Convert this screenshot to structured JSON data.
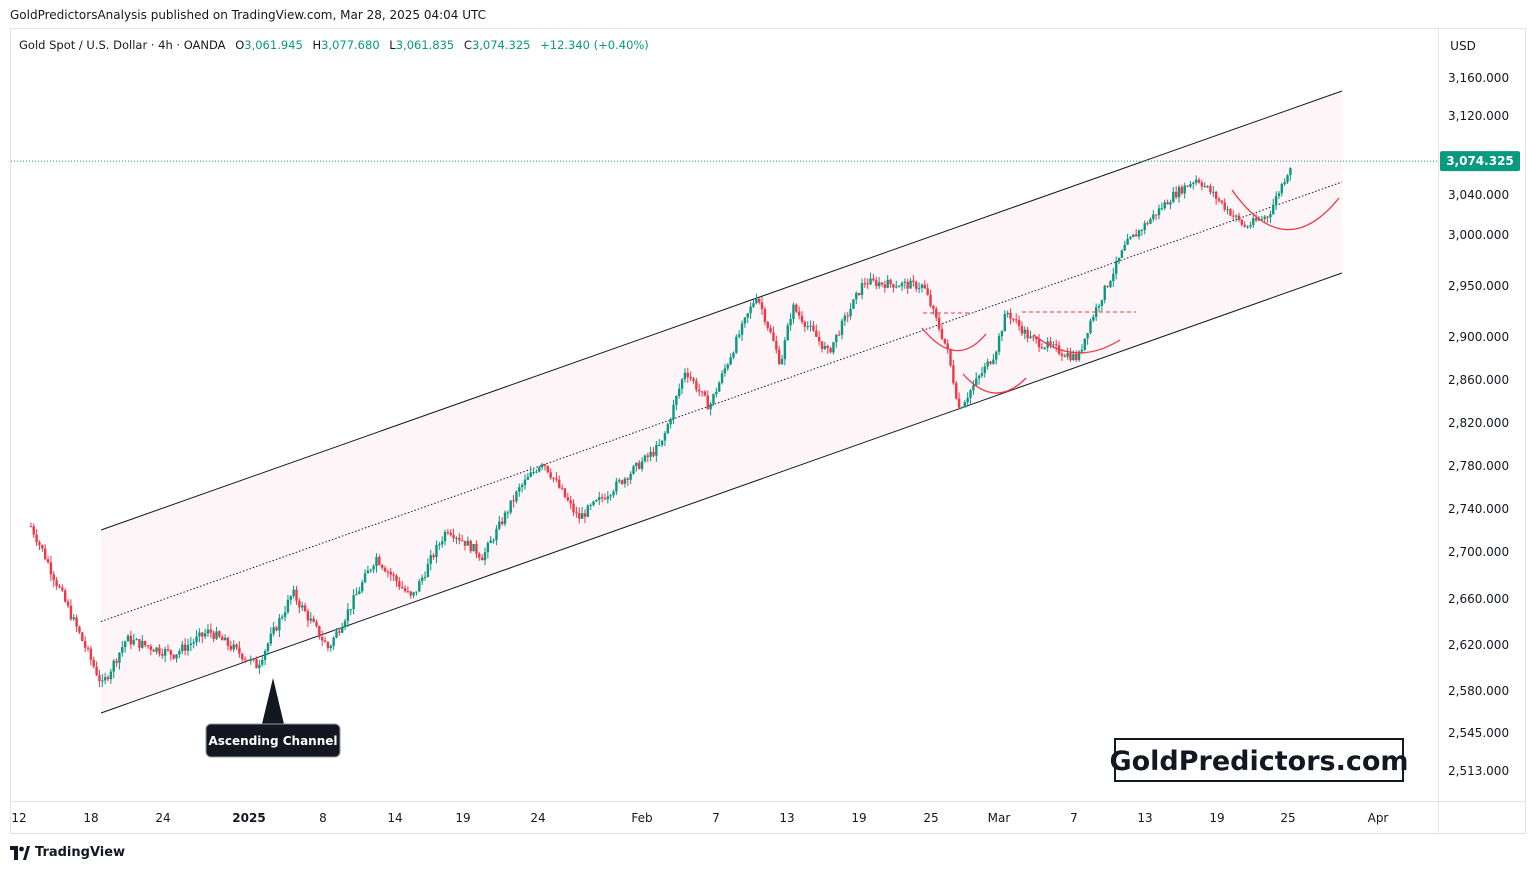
{
  "publisher_line": "GoldPredictorsAnalysis published on TradingView.com, Mar 28, 2025 04:04 UTC",
  "legend": {
    "symbol": "Gold Spot / U.S. Dollar · 4h · OANDA",
    "open_label": "O",
    "open": "3,061.945",
    "high_label": "H",
    "high": "3,077.680",
    "low_label": "L",
    "low": "3,061.835",
    "close_label": "C",
    "close": "3,074.325",
    "change": "+12.340 (+0.40%)"
  },
  "footer": {
    "brand": "TradingView"
  },
  "chart_data": {
    "type": "candlestick",
    "symbol": "Gold Spot / U.S. Dollar",
    "timeframe": "4h",
    "currency": "USD",
    "y_ticks": [
      "3,160.000",
      "3,120.000",
      "3,040.000",
      "3,000.000",
      "2,950.000",
      "2,900.000",
      "2,860.000",
      "2,820.000",
      "2,780.000",
      "2,740.000",
      "2,700.000",
      "2,660.000",
      "2,620.000",
      "2,580.000",
      "2,545.000",
      "2,513.000"
    ],
    "x_ticks": [
      "12",
      "18",
      "24",
      "2025",
      "8",
      "14",
      "19",
      "24",
      "Feb",
      "7",
      "13",
      "19",
      "25",
      "Mar",
      "7",
      "13",
      "19",
      "25",
      "Apr"
    ],
    "last_price": "3,074.325",
    "colors": {
      "up": "#089981",
      "down": "#f23645",
      "channel_fill": "#fdf5f8",
      "curve": "#f23645",
      "last_price_line": "#089981"
    },
    "swing_points": [
      {
        "date": "Dec 12",
        "price": 2724
      },
      {
        "date": "Dec 18",
        "price": 2585
      },
      {
        "date": "Dec 20",
        "price": 2625
      },
      {
        "date": "Dec 24",
        "price": 2612
      },
      {
        "date": "Dec 27",
        "price": 2632
      },
      {
        "date": "Dec 31",
        "price": 2602
      },
      {
        "date": "Jan 3",
        "price": 2665
      },
      {
        "date": "Jan 6",
        "price": 2617
      },
      {
        "date": "Jan 10",
        "price": 2696
      },
      {
        "date": "Jan 13",
        "price": 2660
      },
      {
        "date": "Jan 16",
        "price": 2722
      },
      {
        "date": "Jan 19",
        "price": 2696
      },
      {
        "date": "Jan 22",
        "price": 2758
      },
      {
        "date": "Jan 24",
        "price": 2785
      },
      {
        "date": "Jan 27",
        "price": 2731
      },
      {
        "date": "Jan 30",
        "price": 2760
      },
      {
        "date": "Feb 3",
        "price": 2800
      },
      {
        "date": "Feb 5",
        "price": 2870
      },
      {
        "date": "Feb 7",
        "price": 2835
      },
      {
        "date": "Feb 11",
        "price": 2942
      },
      {
        "date": "Feb 13",
        "price": 2875
      },
      {
        "date": "Feb 14",
        "price": 2930
      },
      {
        "date": "Feb 17",
        "price": 2885
      },
      {
        "date": "Feb 20",
        "price": 2954
      },
      {
        "date": "Feb 25",
        "price": 2950
      },
      {
        "date": "Feb 27",
        "price": 2888
      },
      {
        "date": "Feb 28",
        "price": 2834
      },
      {
        "date": "Mar 3",
        "price": 2885
      },
      {
        "date": "Mar 4",
        "price": 2925
      },
      {
        "date": "Mar 6",
        "price": 2898
      },
      {
        "date": "Mar 10",
        "price": 2880
      },
      {
        "date": "Mar 11",
        "price": 2915
      },
      {
        "date": "Mar 14",
        "price": 2990
      },
      {
        "date": "Mar 18",
        "price": 3040
      },
      {
        "date": "Mar 20",
        "price": 3057
      },
      {
        "date": "Mar 24",
        "price": 3008
      },
      {
        "date": "Mar 26",
        "price": 3020
      },
      {
        "date": "Mar 28",
        "price": 3074
      }
    ],
    "annotations": [
      "Ascending Channel"
    ],
    "watermark": "GoldPredictors.com"
  }
}
